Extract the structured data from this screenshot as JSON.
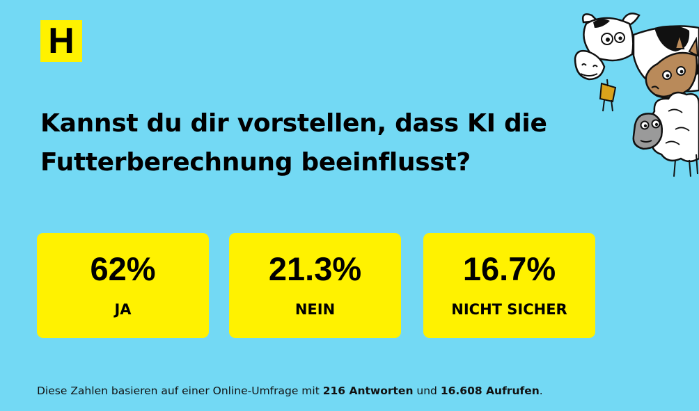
{
  "logo": {
    "letter": "H"
  },
  "question": "Kannst du dir vorstellen, dass KI die Futterberechnung beeinflusst?",
  "results": [
    {
      "percent": "62%",
      "label": "JA",
      "value": 62
    },
    {
      "percent": "21.3%",
      "label": "NEIN",
      "value": 21.3
    },
    {
      "percent": "16.7%",
      "label": "NICHT SICHER",
      "value": 16.7
    }
  ],
  "footnote": {
    "prefix": "Diese Zahlen basieren auf einer Online-Umfrage mit ",
    "responses": "216 Antworten",
    "middle": " und ",
    "views": "16.608 Aufrufen",
    "suffix": "."
  },
  "colors": {
    "background": "#73d9f4",
    "card": "#fff200",
    "logo": "#fff200",
    "text": "#000000"
  },
  "illustration": {
    "icon": "cow-horse-sheep-illustration"
  }
}
